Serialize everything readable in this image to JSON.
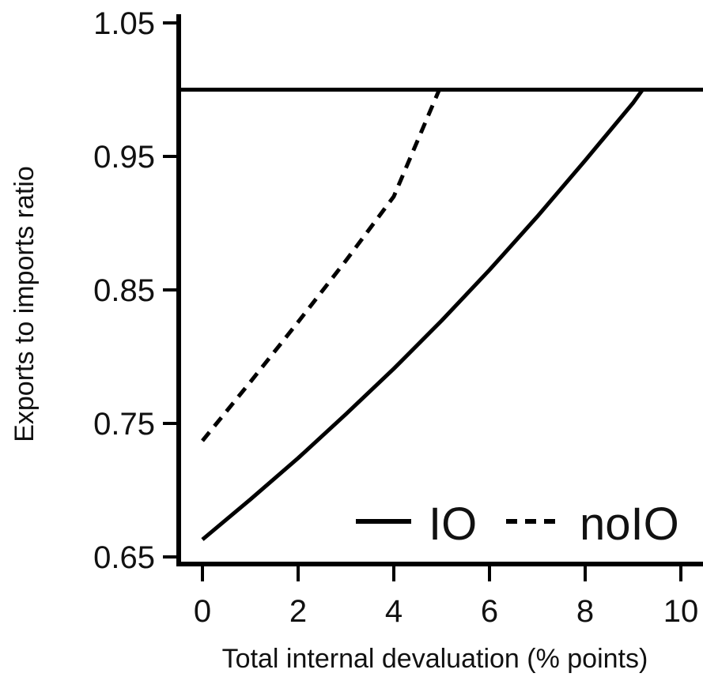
{
  "chart_data": {
    "type": "line",
    "title": "",
    "xlabel": "Total internal devaluation (% points)",
    "ylabel": "Exports to imports ratio",
    "xlim": [
      -0.5,
      10.5
    ],
    "ylim": [
      0.645,
      1.06
    ],
    "x_ticks": [
      0,
      2,
      4,
      6,
      8,
      10
    ],
    "x_tick_labels": [
      "0",
      "2",
      "4",
      "6",
      "8",
      "10"
    ],
    "y_ticks": [
      0.65,
      0.75,
      0.85,
      0.95,
      1.05
    ],
    "y_tick_labels": [
      "0.65",
      "0.75",
      "0.85",
      "0.95",
      "1.05"
    ],
    "grid": false,
    "legend_position": "bottom-right",
    "reference_line": {
      "y": 1.0,
      "style": "solid"
    },
    "series": [
      {
        "name": "IO",
        "style": "solid",
        "color": "#000000",
        "x": [
          0,
          1,
          2,
          3,
          4,
          5,
          6,
          7,
          8,
          9,
          9.2
        ],
        "y": [
          0.663,
          0.693,
          0.724,
          0.757,
          0.791,
          0.827,
          0.865,
          0.905,
          0.947,
          0.99,
          1.0
        ]
      },
      {
        "name": "noIO",
        "style": "dashed",
        "color": "#000000",
        "x": [
          0,
          1,
          2,
          3,
          4,
          4.95
        ],
        "y": [
          0.737,
          0.781,
          0.826,
          0.872,
          0.92,
          1.0
        ]
      }
    ]
  }
}
